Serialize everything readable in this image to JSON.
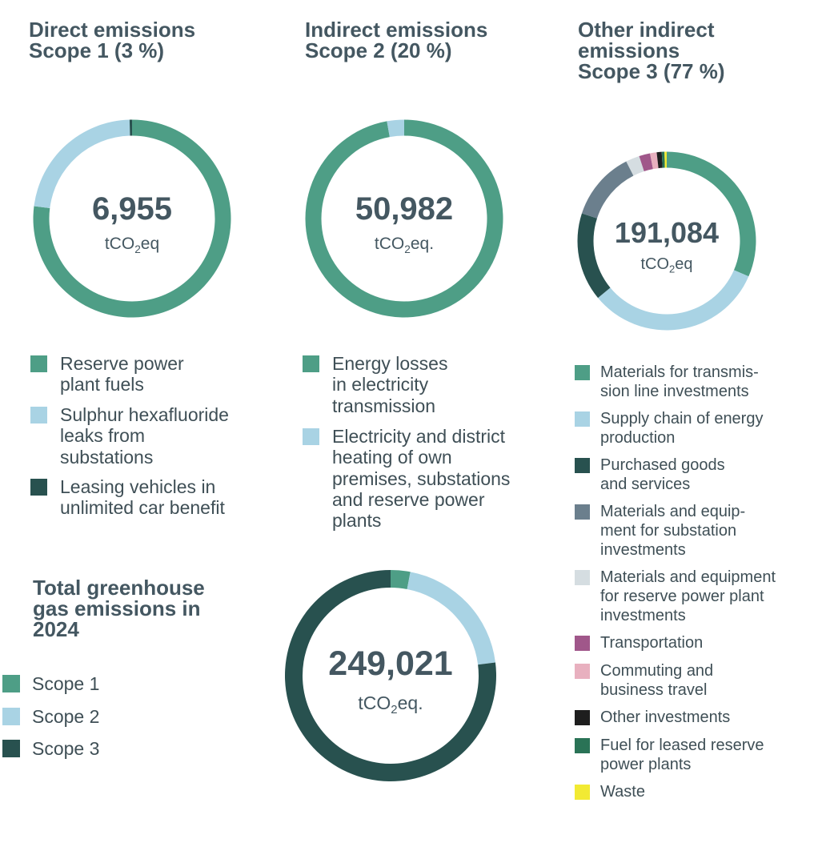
{
  "chart_data": [
    {
      "type": "pie",
      "variant": "donut",
      "title": "Direct emissions\nScope 1 (3 %)",
      "center_value": "6,955",
      "center_unit_prefix": "tCO",
      "center_unit_sub": "2",
      "center_unit_suffix": "eq",
      "series": [
        {
          "name": "Reserve power\nplant fuels",
          "value": 77.0,
          "color": "#4e9e86"
        },
        {
          "name": "Sulphur hexafluoride\nleaks from\nsubstations",
          "value": 22.6,
          "color": "#a9d3e4"
        },
        {
          "name": "Leasing vehicles in\nunlimited car benefit",
          "value": 0.4,
          "color": "#28514f"
        }
      ]
    },
    {
      "type": "pie",
      "variant": "donut",
      "title": "Indirect emissions\nScope 2 (20 %)",
      "center_value": "50,982",
      "center_unit_prefix": "tCO",
      "center_unit_sub": "2",
      "center_unit_suffix": "eq.",
      "series": [
        {
          "name": "Energy losses\nin electricity\ntransmission",
          "value": 97.2,
          "color": "#4e9e86"
        },
        {
          "name": "Electricity and district\nheating of own\npremises, substations\nand reserve power\nplants",
          "value": 2.8,
          "color": "#a9d3e4"
        }
      ]
    },
    {
      "type": "pie",
      "variant": "donut",
      "title": "Other indirect\nemissions\nScope 3 (77 %)",
      "center_value": "191,084",
      "center_unit_prefix": "tCO",
      "center_unit_sub": "2",
      "center_unit_suffix": "eq",
      "series": [
        {
          "name": "Materials for transmis-\nsion line investments",
          "value": 31.5,
          "color": "#4e9e86"
        },
        {
          "name": "Supply chain of energy\nproduction",
          "value": 32.5,
          "color": "#a9d3e4"
        },
        {
          "name": "Purchased goods\nand services",
          "value": 16.0,
          "color": "#28514f"
        },
        {
          "name": "Materials and equip-\nment for substation\ninvestments",
          "value": 12.5,
          "color": "#6b7f8d"
        },
        {
          "name": "Materials and equipment\nfor reserve power plant\ninvestments",
          "value": 2.5,
          "color": "#d5dde1"
        },
        {
          "name": "Transportation",
          "value": 2.0,
          "color": "#a0578a"
        },
        {
          "name": "Commuting and\nbusiness travel",
          "value": 1.2,
          "color": "#e8b0bf"
        },
        {
          "name": "Other investments",
          "value": 0.9,
          "color": "#1e1e1e"
        },
        {
          "name": "Fuel for leased reserve\npower plants",
          "value": 0.5,
          "color": "#2a7356"
        },
        {
          "name": "Waste",
          "value": 0.4,
          "color": "#f2ea33"
        }
      ]
    },
    {
      "type": "pie",
      "variant": "donut",
      "title": "Total greenhouse\ngas emissions in\n2024",
      "center_value": "249,021",
      "center_unit_prefix": "tCO",
      "center_unit_sub": "2",
      "center_unit_suffix": "eq.",
      "series": [
        {
          "name": "Scope 1",
          "value": 3,
          "color": "#4e9e86"
        },
        {
          "name": "Scope 2",
          "value": 20,
          "color": "#a9d3e4"
        },
        {
          "name": "Scope 3",
          "value": 77,
          "color": "#28514f"
        }
      ]
    }
  ]
}
